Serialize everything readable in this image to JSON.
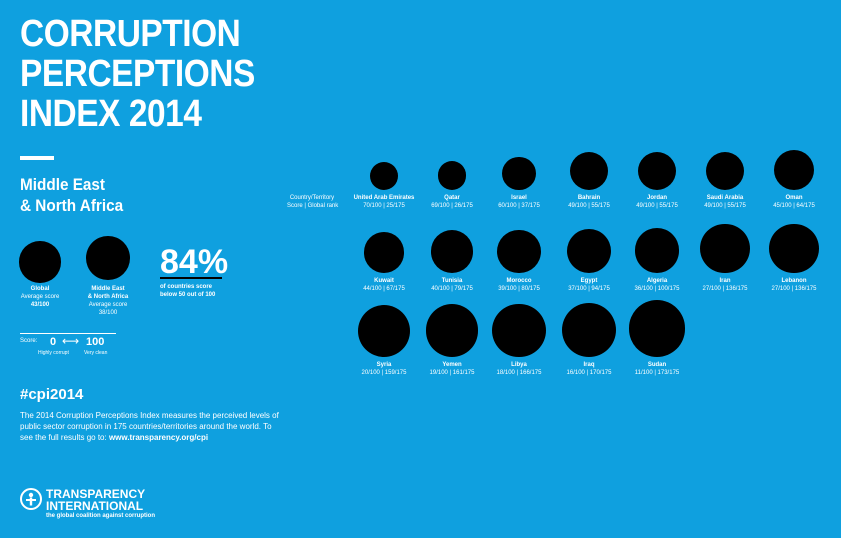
{
  "title_lines": [
    "CORRUPTION",
    "PERCEPTIONS",
    "INDEX 2014"
  ],
  "region_lines": [
    "Middle East",
    "& North Africa"
  ],
  "legend": {
    "global": {
      "label": "Global",
      "sub": "Average score",
      "value": "43/100"
    },
    "mena": {
      "label_1": "Middle East",
      "label_2": "& North Africa",
      "sub": "Average score",
      "value": "38/100"
    }
  },
  "stat": {
    "percent": "84%",
    "line_1": "of countries score",
    "line_2": "below 50 out of 100"
  },
  "scale": {
    "label": "Score:",
    "low": "0",
    "arrow": "⟷",
    "high": "100",
    "low_desc": "Highly corrupt",
    "high_desc": "Very clean"
  },
  "header": {
    "line_1": "Country/Territory",
    "line_2": "Score | Global rank"
  },
  "hashtag": "#cpi2014",
  "description": "The 2014 Corruption Perceptions Index measures the perceived levels of public sector corruption in 175 countries/territories around the world. To see the full results go to:",
  "url": "www.transparency.org/cpi",
  "logo": {
    "line_1": "TRANSPARENCY",
    "line_2": "INTERNATIONAL",
    "tagline": "the global coalition against corruption"
  },
  "chart_data": {
    "type": "scatter",
    "title": "CORRUPTION PERCEPTIONS INDEX 2014",
    "subtitle": "Middle East & North Africa",
    "score_max": 100,
    "total_countries": 175,
    "countries": [
      {
        "name": "United Arab Emirates",
        "score": 70,
        "rank": 25,
        "label": "70/100 | 25/175"
      },
      {
        "name": "Qatar",
        "score": 69,
        "rank": 26,
        "label": "69/100 | 26/175"
      },
      {
        "name": "Israel",
        "score": 60,
        "rank": 37,
        "label": "60/100 | 37/175"
      },
      {
        "name": "Bahrain",
        "score": 49,
        "rank": 55,
        "label": "49/100 | 55/175"
      },
      {
        "name": "Jordan",
        "score": 49,
        "rank": 55,
        "label": "49/100 | 55/175"
      },
      {
        "name": "Saudi Arabia",
        "score": 49,
        "rank": 55,
        "label": "49/100 | 55/175"
      },
      {
        "name": "Oman",
        "score": 45,
        "rank": 64,
        "label": "45/100 | 64/175"
      },
      {
        "name": "Kuwait",
        "score": 44,
        "rank": 67,
        "label": "44/100 | 67/175"
      },
      {
        "name": "Tunisia",
        "score": 40,
        "rank": 79,
        "label": "40/100 | 79/175"
      },
      {
        "name": "Morocco",
        "score": 39,
        "rank": 80,
        "label": "39/100 | 80/175"
      },
      {
        "name": "Egypt",
        "score": 37,
        "rank": 94,
        "label": "37/100 | 94/175"
      },
      {
        "name": "Algeria",
        "score": 36,
        "rank": 100,
        "label": "36/100 | 100/175"
      },
      {
        "name": "Iran",
        "score": 27,
        "rank": 136,
        "label": "27/100 | 136/175"
      },
      {
        "name": "Lebanon",
        "score": 27,
        "rank": 136,
        "label": "27/100 | 136/175"
      },
      {
        "name": "Syria",
        "score": 20,
        "rank": 159,
        "label": "20/100 | 159/175"
      },
      {
        "name": "Yemen",
        "score": 19,
        "rank": 161,
        "label": "19/100 | 161/175"
      },
      {
        "name": "Libya",
        "score": 18,
        "rank": 166,
        "label": "18/100 | 166/175"
      },
      {
        "name": "Iraq",
        "score": 16,
        "rank": 170,
        "label": "16/100 | 170/175"
      },
      {
        "name": "Sudan",
        "score": 11,
        "rank": 173,
        "label": "11/100 | 173/175"
      }
    ],
    "global_average": 43,
    "mena_average": 38
  }
}
